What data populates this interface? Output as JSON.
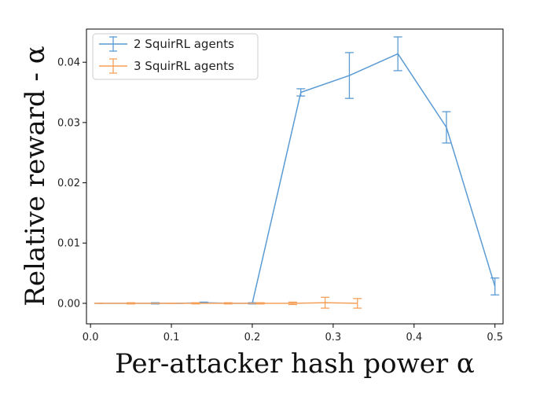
{
  "chart_data": {
    "type": "line",
    "title": "",
    "xlabel": "Per-attacker hash power α",
    "ylabel": "Relative reward - α",
    "xlim": [
      -0.005,
      0.51
    ],
    "ylim": [
      -0.0034,
      0.0455
    ],
    "x_ticks": [
      0.0,
      0.1,
      0.2,
      0.3,
      0.4,
      0.5
    ],
    "x_tick_labels": [
      "0.0",
      "0.1",
      "0.2",
      "0.3",
      "0.4",
      "0.5"
    ],
    "y_ticks": [
      0.0,
      0.01,
      0.02,
      0.03,
      0.04
    ],
    "y_tick_labels": [
      "0.00",
      "0.01",
      "0.02",
      "0.03",
      "0.04"
    ],
    "grid": false,
    "legend_position": "top-left",
    "series": [
      {
        "name": "2 SquirRL agents",
        "color": "#5a9bd4",
        "x": [
          0.01,
          0.05,
          0.08,
          0.11,
          0.14,
          0.17,
          0.2,
          0.26,
          0.32,
          0.38,
          0.44,
          0.5
        ],
        "y": [
          0.0,
          0.0,
          0.0,
          0.0,
          0.0001,
          0.0,
          0.0,
          0.035,
          0.0378,
          0.0414,
          0.0292,
          0.0028
        ],
        "err": [
          0.0,
          0.0,
          0.0001,
          0.0,
          0.0001,
          0.0,
          0.0001,
          0.0006,
          0.0038,
          0.0028,
          0.0026,
          0.0014
        ]
      },
      {
        "name": "3 SquirRL agents",
        "color": "#f5a05a",
        "x": [
          0.01,
          0.05,
          0.1,
          0.13,
          0.17,
          0.21,
          0.25,
          0.29,
          0.33
        ],
        "y": [
          0.0,
          0.0,
          0.0,
          0.0,
          0.0,
          0.0,
          0.0,
          0.0001,
          0.0
        ],
        "err": [
          0.0,
          0.0001,
          0.0,
          0.0001,
          0.0001,
          0.0001,
          0.0002,
          0.0009,
          0.0008
        ]
      }
    ]
  }
}
